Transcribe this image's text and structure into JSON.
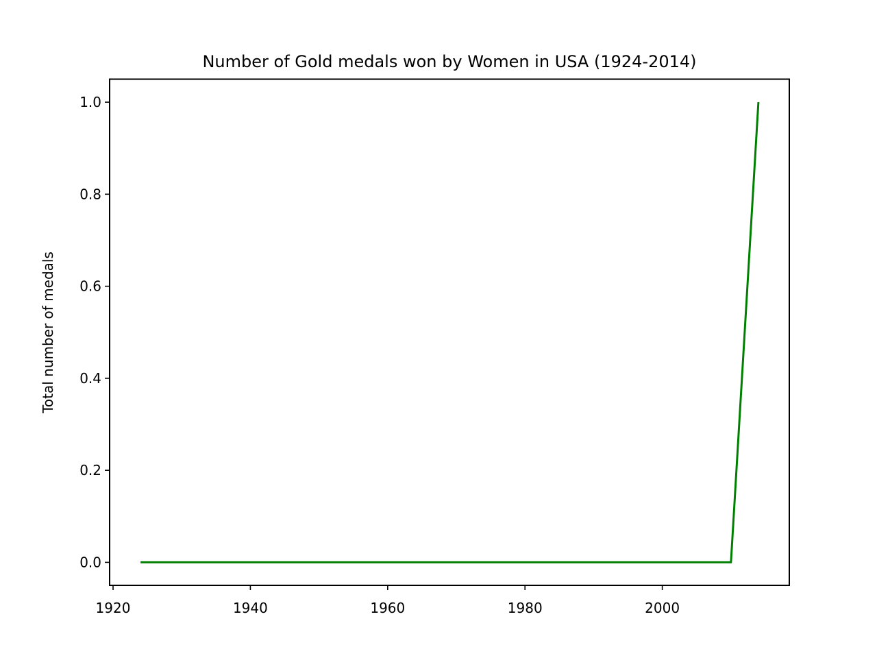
{
  "chart_data": {
    "type": "line",
    "title": "Number of Gold medals won by Women in USA (1924-2014)",
    "xlabel": "",
    "ylabel": "Total number of medals",
    "xlim": [
      1919.5,
      2018.5
    ],
    "ylim": [
      -0.05,
      1.05
    ],
    "xticks": [
      1920,
      1940,
      1960,
      1980,
      2000
    ],
    "yticks": [
      "0.0",
      "0.2",
      "0.4",
      "0.6",
      "0.8",
      "1.0"
    ],
    "grid": false,
    "legend": "none",
    "series": [
      {
        "color": "#008000",
        "x": [
          1924,
          2010,
          2014
        ],
        "y": [
          0,
          0,
          1
        ]
      }
    ]
  }
}
